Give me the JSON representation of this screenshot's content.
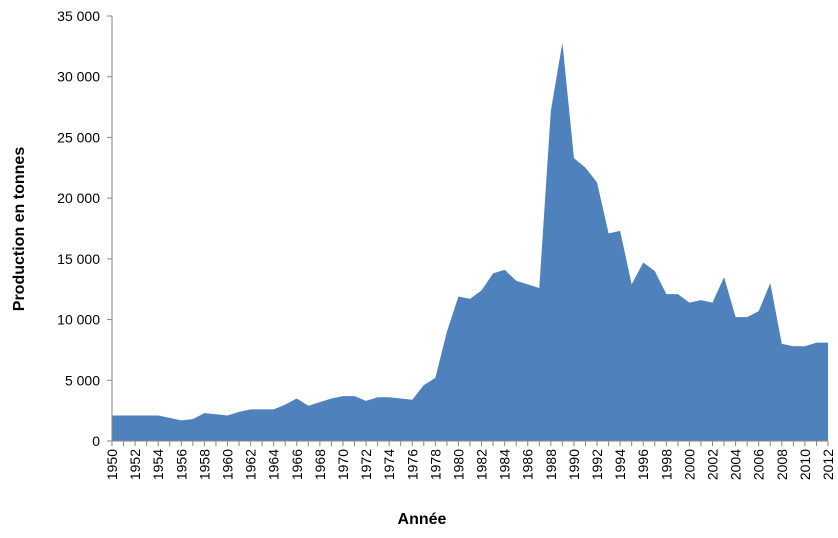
{
  "chart_data": {
    "type": "area",
    "xlabel": "Année",
    "ylabel": "Production en tonnes",
    "color": "#4f81bd",
    "categories": [
      "1950",
      null,
      "1952",
      null,
      "1954",
      null,
      "1956",
      null,
      "1958",
      null,
      "1960",
      null,
      "1962",
      null,
      "1964",
      null,
      "1966",
      null,
      "1968",
      null,
      "1970",
      null,
      "1972",
      null,
      "1974",
      null,
      "1976",
      null,
      "1978",
      null,
      "1980",
      null,
      "1982",
      null,
      "1984",
      null,
      "1986",
      null,
      "1988",
      null,
      "1990",
      null,
      "1992",
      null,
      "1994",
      null,
      "1996",
      null,
      "1998",
      null,
      "2000",
      null,
      "2002",
      null,
      "2004",
      null,
      "2006",
      null,
      "2008",
      null,
      "2010",
      null,
      "2012"
    ],
    "values": [
      2100,
      2100,
      2100,
      2100,
      2100,
      1900,
      1700,
      1800,
      2300,
      2200,
      2100,
      2400,
      2600,
      2600,
      2600,
      3000,
      3500,
      2900,
      3200,
      3500,
      3700,
      3700,
      3300,
      3600,
      3600,
      3500,
      3400,
      4600,
      5200,
      9000,
      11900,
      11700,
      12400,
      13800,
      14100,
      13200,
      12900,
      12600,
      27200,
      32800,
      23300,
      22500,
      21300,
      17100,
      17300,
      12900,
      14700,
      14000,
      12100,
      12100,
      11400,
      11600,
      11400,
      13500,
      10200,
      10200,
      10700,
      13000,
      8000,
      7800,
      7800,
      8100,
      8100
    ],
    "ylim": [
      0,
      35000
    ],
    "yticks": [
      0,
      {
        "value": 5000,
        "label": "5 000"
      },
      {
        "value": 10000,
        "label": "10 000"
      },
      {
        "value": 15000,
        "label": "15 000"
      },
      {
        "value": 20000,
        "label": "20 000"
      },
      {
        "value": 25000,
        "label": "25 000"
      },
      {
        "value": 30000,
        "label": "30 000"
      },
      {
        "value": 35000,
        "label": "35 000"
      }
    ]
  }
}
